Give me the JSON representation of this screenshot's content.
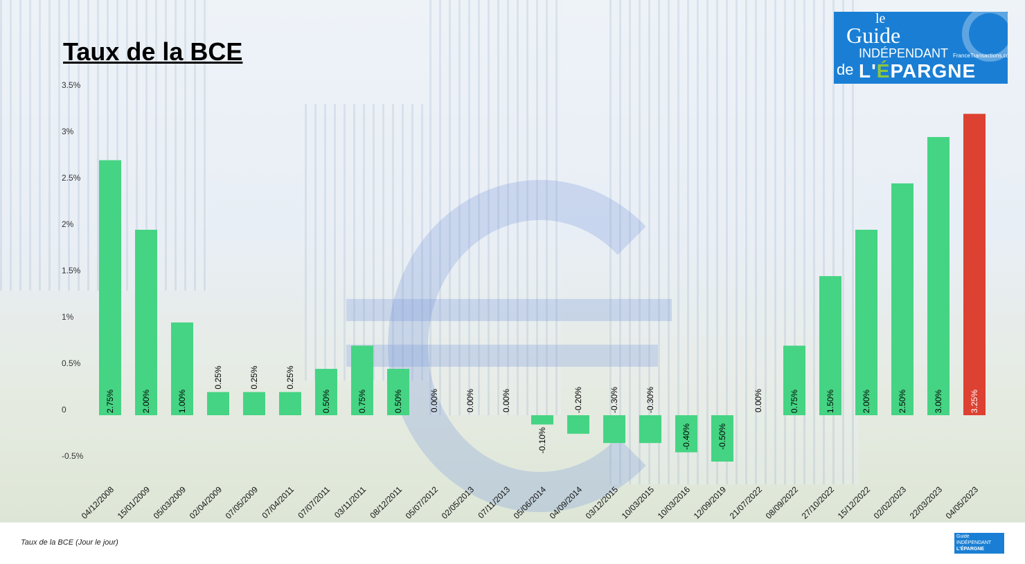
{
  "title": "Taux de la BCE",
  "caption": "Taux de la BCE (Jour le jour)",
  "logo": {
    "line1": "le",
    "line2": "Guide",
    "line3": "INDÉPENDANT",
    "line4": "de",
    "line5": "L'ÉPARGNE",
    "site": "FranceTransactions.com"
  },
  "colors": {
    "bar": "#45d483",
    "highlight": "#dc4132"
  },
  "chart_data": {
    "type": "bar",
    "title": "Taux de la BCE",
    "categories": [
      "04/12/2008",
      "15/01/2009",
      "05/03/2009",
      "02/04/2009",
      "07/05/2009",
      "07/04/2011",
      "07/07/2011",
      "03/11/2011",
      "08/12/2011",
      "05/07/2012",
      "02/05/2013",
      "07/11/2013",
      "05/06/2014",
      "04/09/2014",
      "03/12/2015",
      "10/03/2015",
      "10/03/2016",
      "12/09/2019",
      "21/07/2022",
      "08/09/2022",
      "27/10/2022",
      "15/12/2022",
      "02/02/2023",
      "22/03/2023",
      "04/05/2023"
    ],
    "values": [
      2.75,
      2.0,
      1.0,
      0.25,
      0.25,
      0.25,
      0.5,
      0.75,
      0.5,
      0.0,
      0.0,
      0.0,
      -0.1,
      -0.2,
      -0.3,
      -0.3,
      -0.4,
      -0.5,
      0.0,
      0.75,
      1.5,
      2.0,
      2.5,
      3.0,
      3.25
    ],
    "data_labels": [
      "2.75%",
      "2.00%",
      "1.00%",
      "0.25%",
      "0.25%",
      "0.25%",
      "0.50%",
      "0.75%",
      "0.50%",
      "0.00%",
      "0.00%",
      "0.00%",
      "-0.10%",
      "-0.20%",
      "-0.30%",
      "-0.30%",
      "-0.40%",
      "-0.50%",
      "0.00%",
      "0.75%",
      "1.50%",
      "2.00%",
      "2.50%",
      "3.00%",
      "3.25%"
    ],
    "highlight_index": 24,
    "yticks": [
      -0.5,
      0,
      0.5,
      1,
      1.5,
      2,
      2.5,
      3,
      3.5
    ],
    "ytick_labels": [
      "-0.5%",
      "0",
      "0.5%",
      "1%",
      "1.5%",
      "2%",
      "2.5%",
      "3%",
      "3.5%"
    ],
    "ylim": [
      -0.5,
      3.5
    ],
    "grid": false
  }
}
